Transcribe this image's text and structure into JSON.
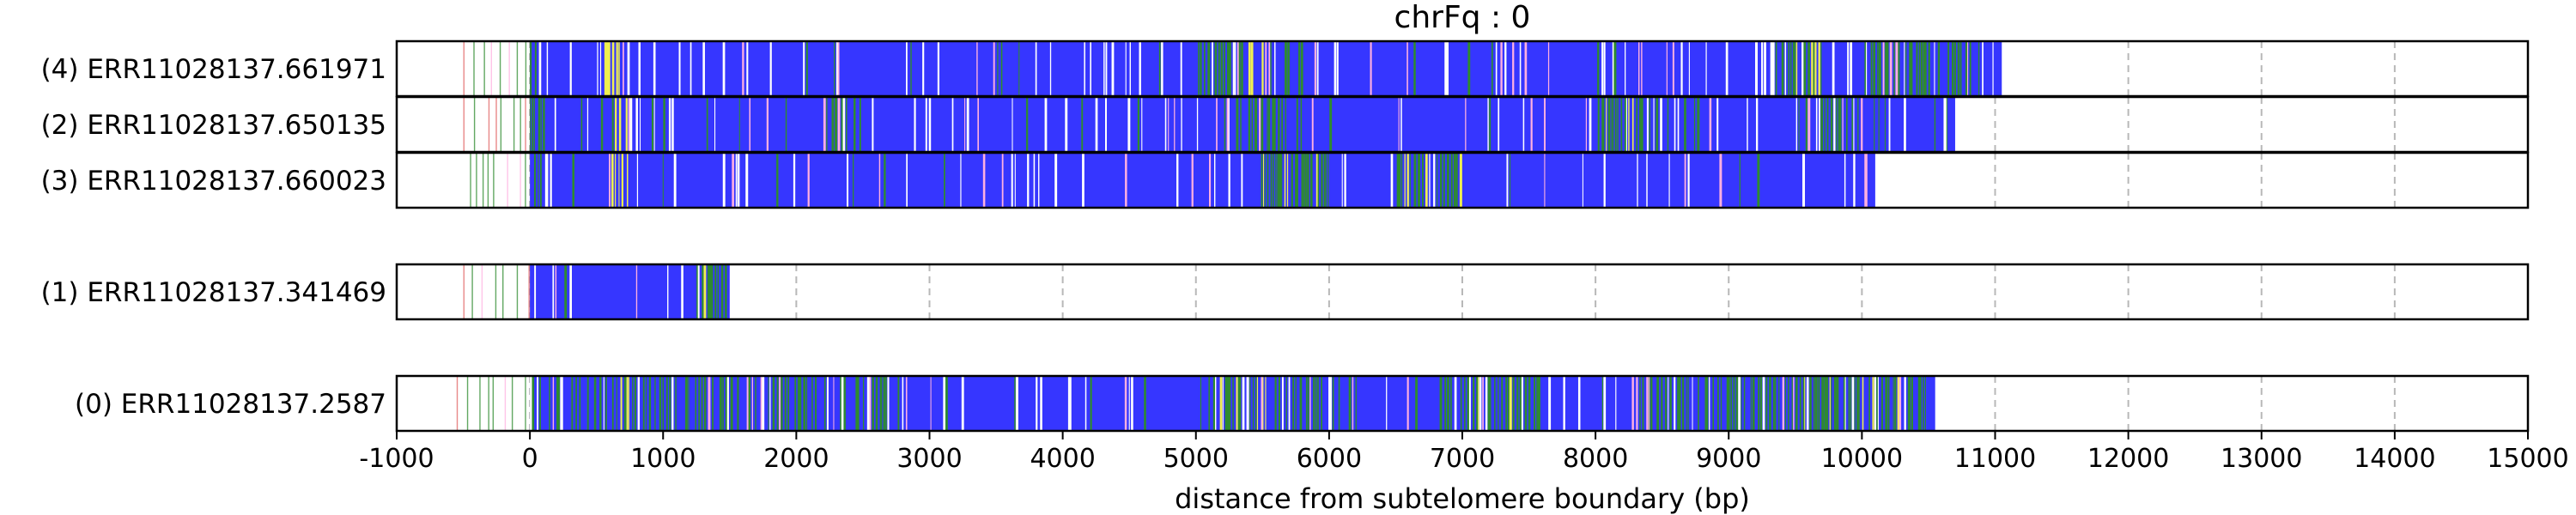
{
  "chart_data": {
    "type": "bar",
    "title": "chrFq : 0",
    "xlabel": "distance from subtelomere boundary (bp)",
    "ylabel": "",
    "xlim": [
      -1000,
      15000
    ],
    "xticks": [
      -1000,
      0,
      1000,
      2000,
      3000,
      4000,
      5000,
      6000,
      7000,
      8000,
      9000,
      10000,
      11000,
      12000,
      13000,
      14000,
      15000
    ],
    "xtick_labels": [
      "-1000",
      "0",
      "1000",
      "2000",
      "3000",
      "4000",
      "5000",
      "6000",
      "7000",
      "8000",
      "9000",
      "10000",
      "11000",
      "12000",
      "13000",
      "14000",
      "15000"
    ],
    "grid": "vertical-dashed",
    "colors": {
      "blue": "#3636ff",
      "green": "#2e8b2e",
      "yellow": "#f0f050",
      "pink": "#ffb0e0",
      "red": "#e06060",
      "white": "#ffffff",
      "grid": "#b8b8b8"
    },
    "reads": [
      {
        "label": "(4) ERR11028137.661971",
        "start": -500,
        "dense_start": 0,
        "end": 11050,
        "green_zones": [
          [
            -500,
            0
          ],
          [
            5000,
            5700
          ],
          [
            9300,
            9700
          ],
          [
            10000,
            10850
          ]
        ],
        "yellow_zones": [
          [
            500,
            700
          ],
          [
            5200,
            5500
          ],
          [
            9500,
            9700
          ]
        ]
      },
      {
        "label": "(2) ERR11028137.650135",
        "start": -500,
        "dense_start": 0,
        "end": 10700,
        "green_zones": [
          [
            -500,
            100
          ],
          [
            2200,
            2500
          ],
          [
            5200,
            5800
          ],
          [
            8000,
            8500
          ],
          [
            9500,
            10200
          ]
        ],
        "yellow_zones": [
          [
            600,
            750
          ],
          [
            8000,
            8300
          ]
        ]
      },
      {
        "label": "(3) ERR11028137.660023",
        "start": -450,
        "dense_start": 0,
        "end": 10100,
        "green_zones": [
          [
            -450,
            100
          ],
          [
            5500,
            6000
          ],
          [
            6500,
            7000
          ]
        ],
        "yellow_zones": [
          [
            600,
            750
          ],
          [
            5500,
            6000
          ],
          [
            6500,
            7000
          ]
        ]
      },
      {
        "label": "(1) ERR11028137.341469",
        "start": -500,
        "dense_start": 0,
        "end": 1500,
        "green_zones": [
          [
            1250,
            1500
          ]
        ],
        "yellow_zones": [
          [
            1250,
            1400
          ]
        ]
      },
      {
        "label": "(0) ERR11028137.2587",
        "start": -550,
        "dense_start": 0,
        "end": 10550,
        "green_zones": [
          [
            0,
            2800
          ],
          [
            5000,
            6200
          ],
          [
            6800,
            7600
          ],
          [
            8300,
            9300
          ],
          [
            9300,
            10500
          ]
        ],
        "yellow_zones": [
          [
            600,
            800
          ],
          [
            5000,
            5600
          ],
          [
            7000,
            7500
          ],
          [
            8300,
            8700
          ],
          [
            9300,
            10000
          ],
          [
            10000,
            10300
          ]
        ]
      }
    ]
  }
}
